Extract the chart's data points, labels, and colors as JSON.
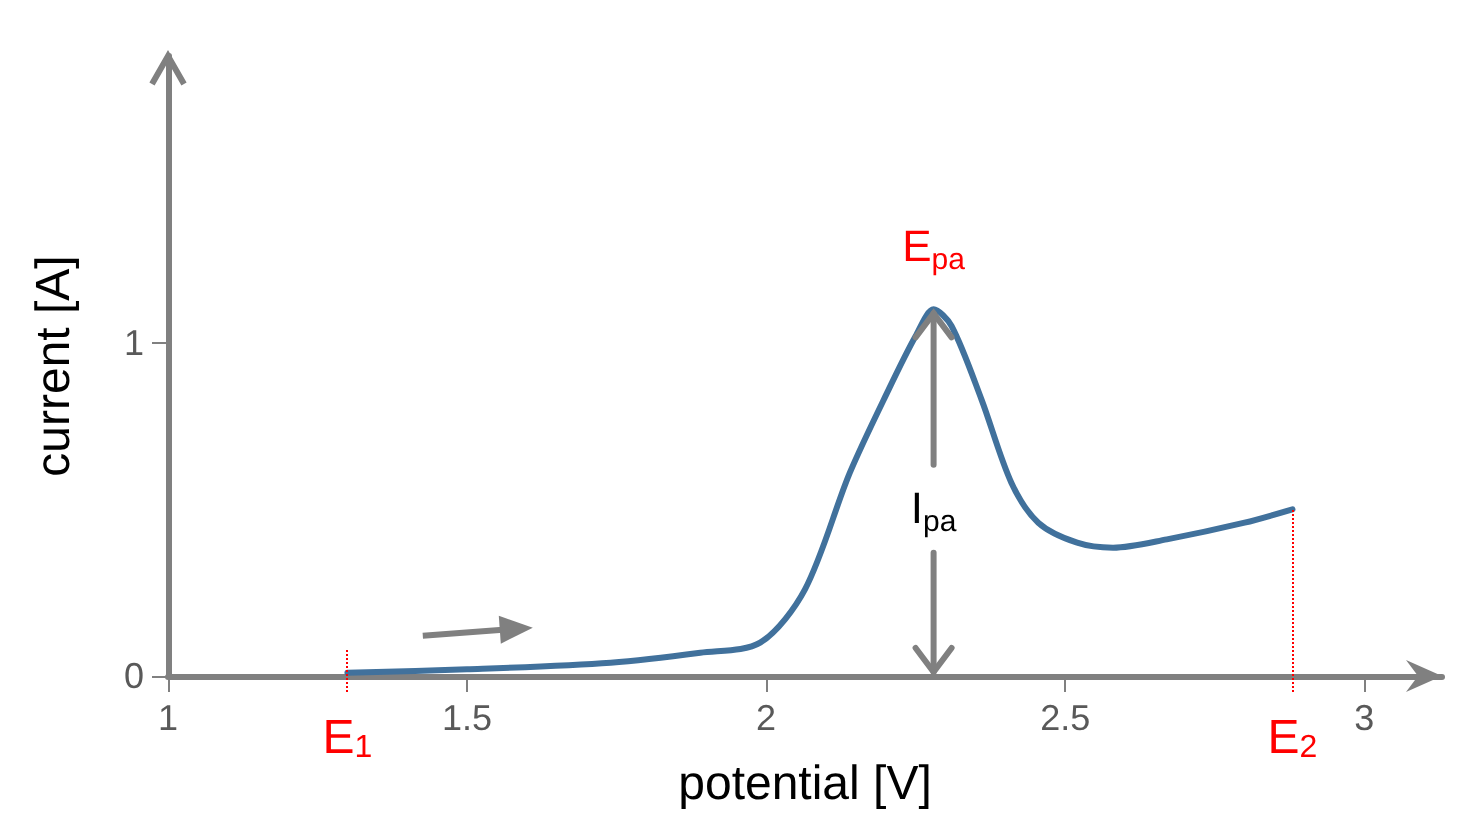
{
  "chart_data": {
    "type": "line",
    "xlabel": "potential [V]",
    "ylabel": "current [A]",
    "x": [
      1.3,
      1.5,
      1.74,
      1.89,
      1.99,
      2.065,
      2.14,
      2.205,
      2.25,
      2.28,
      2.31,
      2.36,
      2.41,
      2.455,
      2.52,
      2.58,
      2.67,
      2.8,
      2.88
    ],
    "series": [
      {
        "color": "#41719c",
        "values": [
          0.01,
          0.02,
          0.04,
          0.07,
          0.1,
          0.26,
          0.61,
          0.86,
          1.02,
          1.1,
          1.05,
          0.83,
          0.58,
          0.46,
          0.4,
          0.385,
          0.41,
          0.46,
          0.5
        ]
      }
    ],
    "xlim": [
      1,
      3.13
    ],
    "xticks": [
      1,
      1.5,
      2,
      2.5,
      3
    ],
    "ylim": [
      0,
      1.86
    ],
    "yticks": [
      0,
      1
    ],
    "ref_lines": [
      {
        "axis": "x",
        "value": 1.3,
        "label": "E$_{1}$",
        "color": "#ff0000",
        "line_style": "dotted"
      },
      {
        "axis": "x",
        "value": 2.88,
        "label": "E$_{2}$",
        "color": "#ff0000",
        "line_style": "dotted"
      }
    ],
    "annotations": [
      {
        "text": "E$_{pa}$",
        "x": 2.28,
        "y": 1.1
      },
      {
        "text": "I$_{pa}$",
        "x": 2.28,
        "y": 1.1
      }
    ],
    "grid": false,
    "marker": "none",
    "line_style": "solid"
  }
}
